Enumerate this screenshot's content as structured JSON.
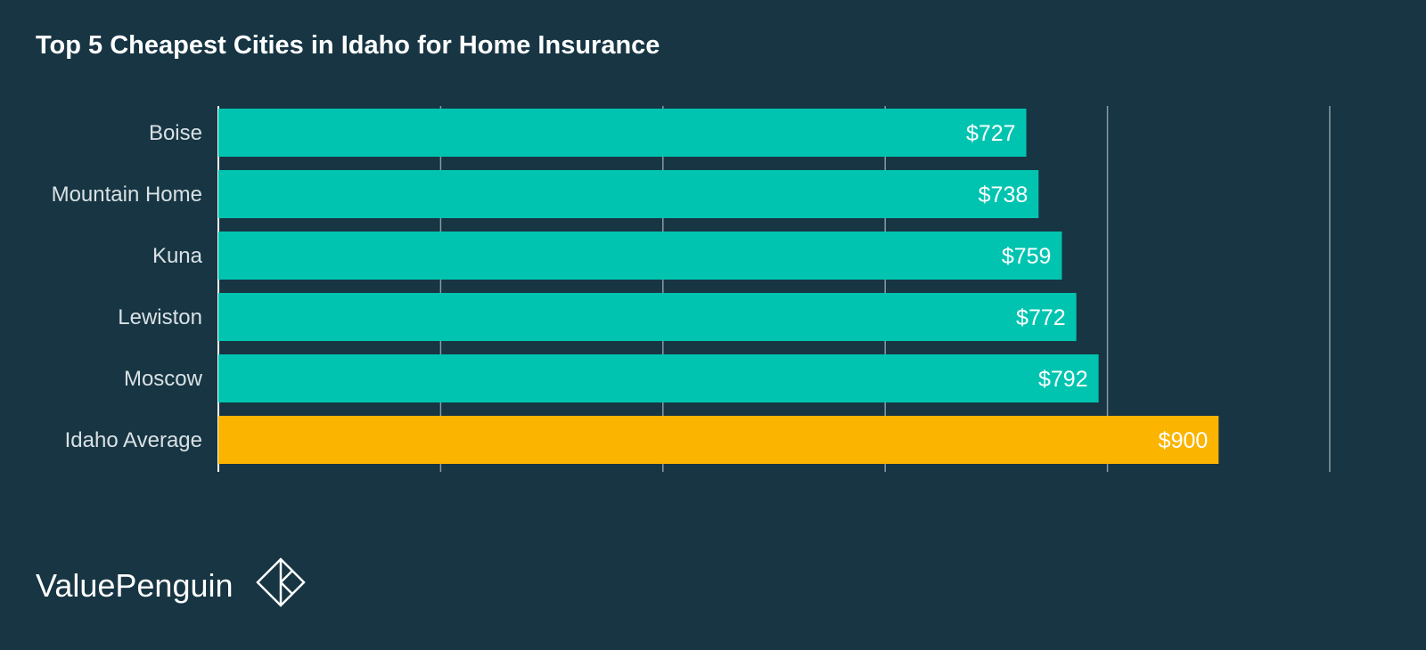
{
  "chart_data": {
    "type": "bar",
    "orientation": "horizontal",
    "title": "Top 5 Cheapest Cities in Idaho for Home Insurance",
    "categories": [
      "Boise",
      "Mountain Home",
      "Kuna",
      "Lewiston",
      "Moscow",
      "Idaho Average"
    ],
    "values": [
      727,
      738,
      759,
      772,
      792,
      900
    ],
    "value_labels": [
      "$727",
      "$738",
      "$759",
      "$772",
      "$792",
      "$900"
    ],
    "xlim": [
      0,
      1000
    ],
    "grid": true,
    "colors": {
      "background": "#173543",
      "city_bar": "#00c4b0",
      "average_bar": "#fbb400",
      "grid": "#8a9ba2"
    }
  },
  "brand": {
    "name": "ValuePenguin",
    "logo_icon": "diamond-logo-icon"
  }
}
